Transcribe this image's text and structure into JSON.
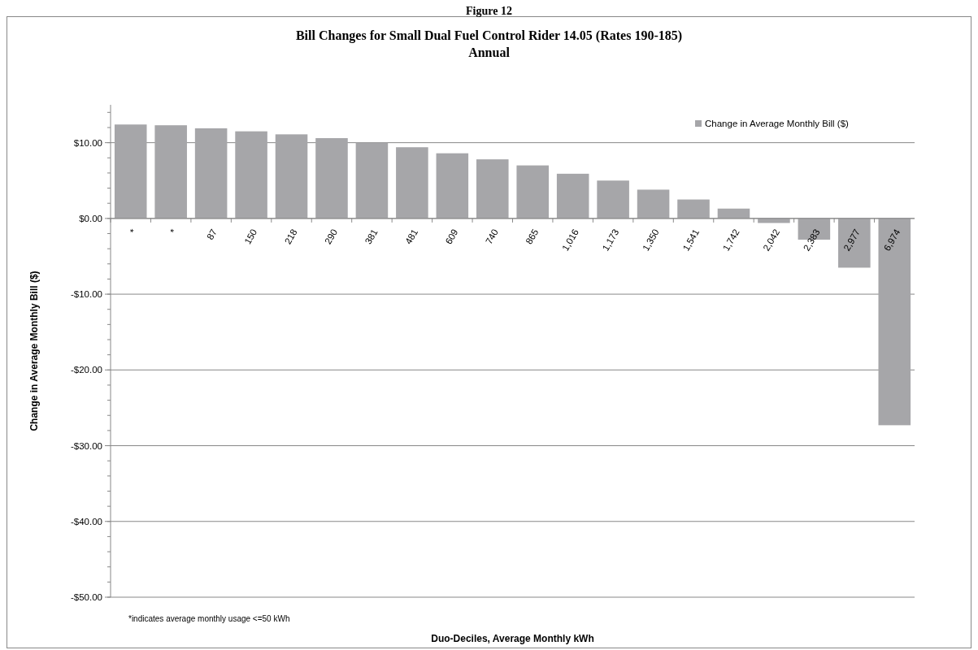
{
  "chart_data": {
    "type": "bar",
    "title": "Bill Changes for Small Dual Fuel Control Rider 14.05 (Rates 190-185)",
    "subtitle": "Annual",
    "xlabel": "Duo-Deciles, Average Monthly kWh",
    "ylabel": "Change in Average Monthly Bill ($)",
    "annotations": [
      "Figure 12",
      "*indicates average monthly usage <=50 kWh"
    ],
    "categories": [
      "*",
      "*",
      "87",
      "150",
      "218",
      "290",
      "381",
      "481",
      "609",
      "740",
      "865",
      "1,016",
      "1,173",
      "1,350",
      "1,541",
      "1,742",
      "2,042",
      "2,383",
      "2,977",
      "6,974"
    ],
    "series": [
      {
        "name": "Change in Average Monthly Bill ($)",
        "color": "#a6a6a9",
        "values": [
          12.4,
          12.3,
          11.9,
          11.5,
          11.1,
          10.6,
          10.0,
          9.4,
          8.6,
          7.8,
          7.0,
          5.9,
          5.0,
          3.8,
          2.5,
          1.3,
          -0.6,
          -2.8,
          -6.5,
          -27.3
        ]
      }
    ],
    "ylim": [
      -50,
      15
    ],
    "yticks": [
      {
        "value": -50,
        "label": "-$50.00"
      },
      {
        "value": -40,
        "label": "-$40.00"
      },
      {
        "value": -30,
        "label": "-$30.00"
      },
      {
        "value": -20,
        "label": "-$20.00"
      },
      {
        "value": -10,
        "label": "-$10.00"
      },
      {
        "value": 0,
        "label": "$0.00"
      },
      {
        "value": 10,
        "label": "$10.00"
      }
    ],
    "grid": "y",
    "legend": "top right"
  }
}
